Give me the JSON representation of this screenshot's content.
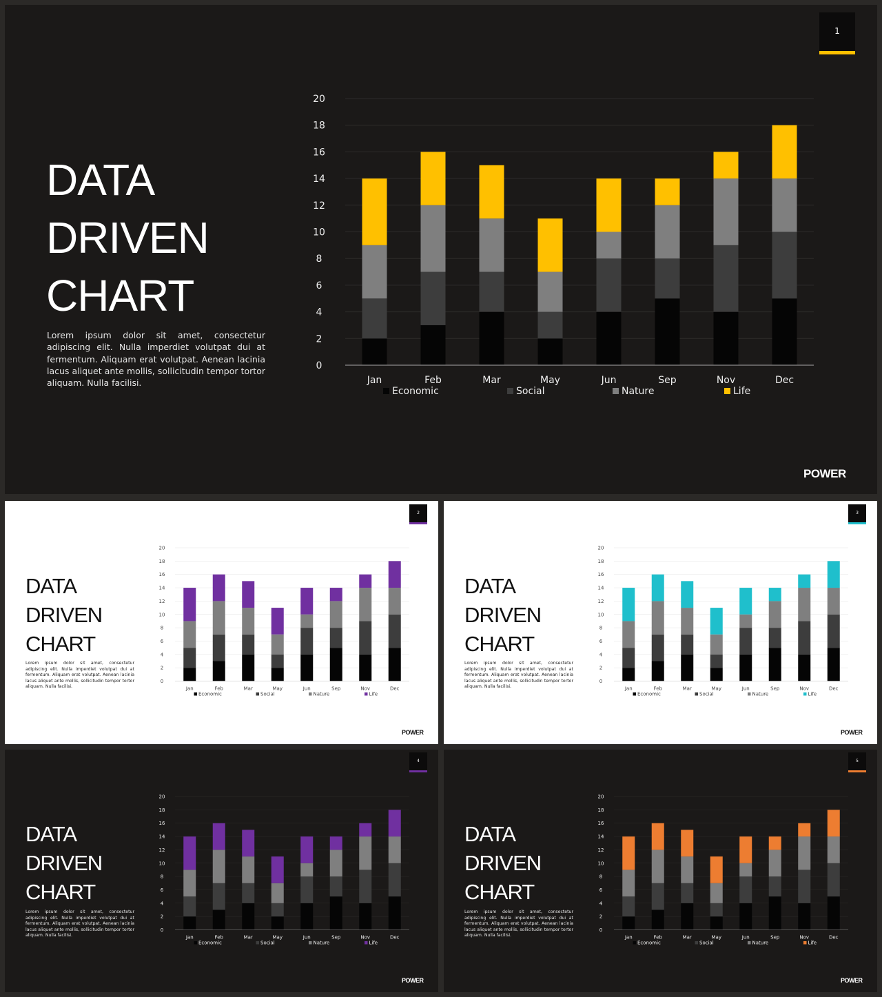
{
  "brand": "POWER",
  "series_colors": {
    "Economic": "#050505",
    "Social": "#3d3d3d",
    "Nature": "#7f7f7f"
  },
  "themes": {
    "dark": {
      "background": "#1b1918",
      "gridline": "#2e2c2b",
      "axis_line": "#8c8c8c",
      "label_color": "#eeeeee"
    },
    "light": {
      "background": "#ffffff",
      "gridline": "#e3e3e3",
      "axis_line": "#bfbfbf",
      "label_color": "#444444"
    }
  },
  "slides": [
    {
      "number": "1",
      "theme": "dark",
      "accent": "#ffc000",
      "title_lines": [
        "DATA",
        "DRIVEN",
        "CHART"
      ],
      "body": "Lorem ipsum dolor sit amet, consectetur adipiscing elit. Nulla imperdiet volutpat dui at fermentum. Aliquam erat volutpat. Aenean lacinia lacus aliquet ante mollis, sollicitudin tempor tortor aliquam. Nulla facilisi.",
      "brand": "POWER"
    },
    {
      "number": "2",
      "theme": "light",
      "accent": "#7030a0",
      "title_lines": [
        "DATA",
        "DRIVEN",
        "CHART"
      ],
      "body": "Lorem ipsum dolor sit amet, consectetur adipiscing elit. Nulla imperdiet volutpat dui at fermentum. Aliquam erat volutpat. Aenean lacinia lacus aliquet ante mollis, sollicitudin tempor tortor aliquam. Nulla facilisi.",
      "brand": "POWER"
    },
    {
      "number": "3",
      "theme": "light",
      "accent": "#1fbfcc",
      "title_lines": [
        "DATA",
        "DRIVEN",
        "CHART"
      ],
      "body": "Lorem ipsum dolor sit amet, consectetur adipiscing elit. Nulla imperdiet volutpat dui at fermentum. Aliquam erat volutpat. Aenean lacinia lacus aliquet ante mollis, sollicitudin tempor tortor aliquam. Nulla facilisi.",
      "brand": "POWER"
    },
    {
      "number": "4",
      "theme": "dark",
      "accent": "#7030a0",
      "title_lines": [
        "DATA",
        "DRIVEN",
        "CHART"
      ],
      "body": "Lorem ipsum dolor sit amet, consectetur adipiscing elit. Nulla imperdiet volutpat dui at fermentum. Aliquam erat volutpat. Aenean lacinia lacus aliquet ante mollis, sollicitudin tempor tortor aliquam. Nulla facilisi.",
      "brand": "POWER"
    },
    {
      "number": "5",
      "theme": "dark",
      "accent": "#ed7d31",
      "title_lines": [
        "DATA",
        "DRIVEN",
        "CHART"
      ],
      "body": "Lorem ipsum dolor sit amet, consectetur adipiscing elit. Nulla imperdiet volutpat dui at fermentum. Aliquam erat volutpat. Aenean lacinia lacus aliquet ante mollis, sollicitudin tempor tortor aliquam. Nulla facilisi.",
      "brand": "POWER"
    }
  ],
  "chart_data": {
    "type": "bar",
    "stacked": true,
    "categories": [
      "Jan",
      "Feb",
      "Mar",
      "May",
      "Jun",
      "Sep",
      "Nov",
      "Dec"
    ],
    "series": [
      {
        "name": "Economic",
        "values": [
          2,
          3,
          4,
          2,
          4,
          5,
          4,
          5
        ]
      },
      {
        "name": "Social",
        "values": [
          3,
          4,
          3,
          2,
          4,
          3,
          5,
          5
        ]
      },
      {
        "name": "Nature",
        "values": [
          4,
          5,
          4,
          3,
          2,
          4,
          5,
          4
        ]
      },
      {
        "name": "Life",
        "values": [
          5,
          4,
          4,
          4,
          4,
          2,
          2,
          4
        ]
      }
    ],
    "ylim": [
      0,
      20
    ],
    "yticks": [
      "0",
      "2",
      "4",
      "6",
      "8",
      "10",
      "12",
      "14",
      "16",
      "18",
      "20"
    ],
    "grid": true,
    "legend": "bottom",
    "title": "",
    "xlabel": "",
    "ylabel": ""
  }
}
